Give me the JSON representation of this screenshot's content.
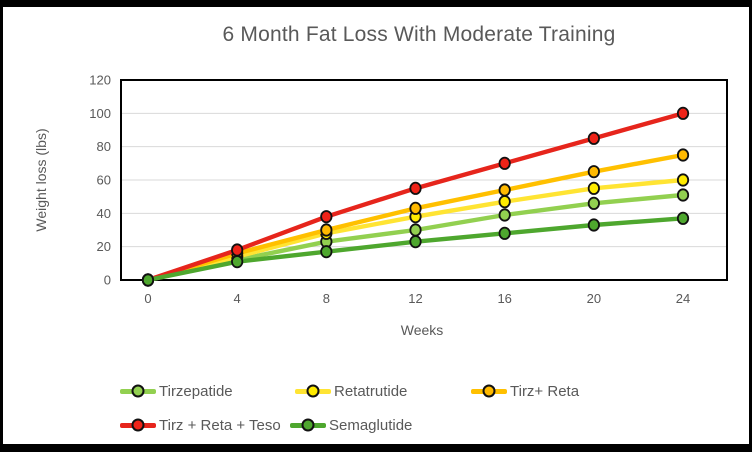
{
  "frame": {
    "background": "#FFFFFF",
    "border_color": "#000000"
  },
  "chart_data": {
    "type": "line",
    "title": "6 Month Fat Loss With Moderate Training",
    "xlabel": "Weeks",
    "ylabel": "Weight loss (lbs)",
    "x": [
      0,
      4,
      8,
      12,
      16,
      20,
      24
    ],
    "x_tick_labels": [
      "0",
      "4",
      "8",
      "12",
      "16",
      "20",
      "24"
    ],
    "ylim": [
      0,
      120
    ],
    "ytick_step": 20,
    "y_tick_labels": [
      "0",
      "20",
      "40",
      "60",
      "80",
      "100",
      "120"
    ],
    "grid": "horizontal",
    "gridline_color": "#D9D9D9",
    "axis_border_color": "#000000",
    "text_color": "#595959",
    "legend_position": "bottom",
    "legend_rows": [
      [
        "Tirzepatide",
        "Retatrutide",
        "Tirz+ Reta"
      ],
      [
        "Tirz + Reta + Teso",
        "Semaglutide"
      ]
    ],
    "series": [
      {
        "name": "Tirzepatide",
        "color": "#92D050",
        "marker_fill": "#92D050",
        "values": [
          0,
          12,
          23,
          30,
          39,
          46,
          51
        ]
      },
      {
        "name": "Retatrutide",
        "color": "#FFE433",
        "marker_fill": "#FFEB00",
        "values": [
          0,
          14,
          28,
          38,
          47,
          55,
          60
        ]
      },
      {
        "name": "Tirz+ Reta",
        "color": "#FFC000",
        "marker_fill": "#FFB900",
        "values": [
          0,
          16,
          30,
          43,
          54,
          65,
          75
        ]
      },
      {
        "name": "Tirz + Reta + Teso",
        "color": "#E6251C",
        "marker_fill": "#EF2318",
        "values": [
          0,
          18,
          38,
          55,
          70,
          85,
          100
        ]
      },
      {
        "name": "Semaglutide",
        "color": "#4EA72E",
        "marker_fill": "#4EA72E",
        "values": [
          0,
          11,
          17,
          23,
          28,
          33,
          37
        ]
      }
    ]
  }
}
